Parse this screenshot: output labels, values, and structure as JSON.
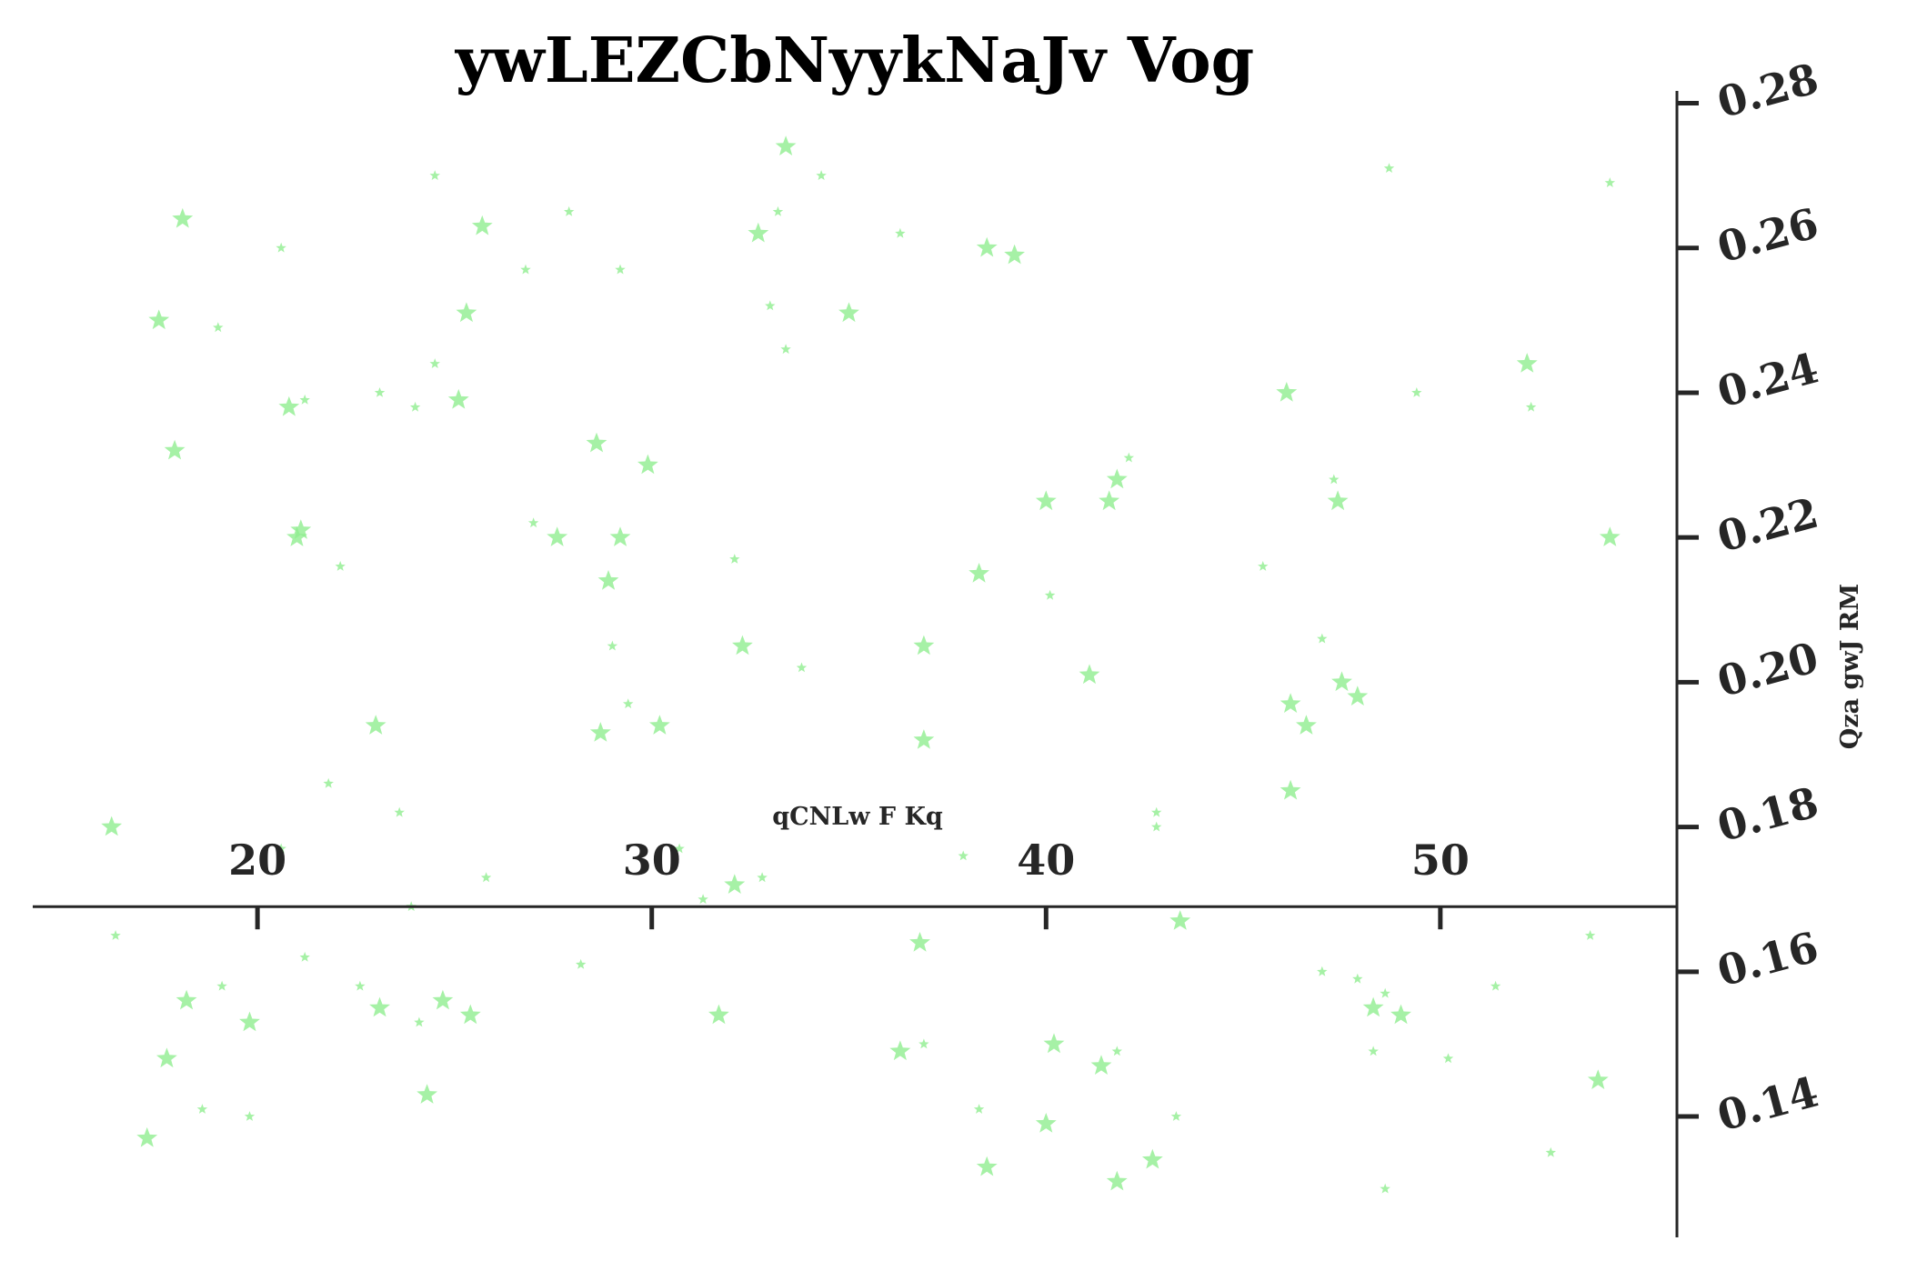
{
  "chart_data": {
    "type": "scatter",
    "title": "ywLEZCbNyykNaJv Vog",
    "xlabel": "qCNLw F  Kq",
    "ylabel": "Qza gwJ RM",
    "xlim": [
      14.3,
      56.0
    ],
    "ylim": [
      0.1233,
      0.2817
    ],
    "x_ticks": [
      20,
      30,
      40,
      50
    ],
    "y_ticks": [
      0.14,
      0.16,
      0.18,
      0.2,
      0.22,
      0.24,
      0.26,
      0.28
    ],
    "x_tick_labels": [
      "20",
      "30",
      "40",
      "50"
    ],
    "y_tick_labels": [
      "0.14",
      "0.16",
      "0.18",
      "0.20",
      "0.22",
      "0.24",
      "0.26",
      "0.28"
    ],
    "x_axis_crosses_y": 0.169,
    "y_axis_crosses_x": 56.0,
    "y_axis_side": "right",
    "marker": "star",
    "color": "#90ee90",
    "grid": false,
    "legend": "none",
    "points": [
      {
        "x": 18.1,
        "y": 0.264,
        "s": "l"
      },
      {
        "x": 17.5,
        "y": 0.25,
        "s": "l"
      },
      {
        "x": 17.9,
        "y": 0.232,
        "s": "l"
      },
      {
        "x": 19.0,
        "y": 0.249,
        "s": "s"
      },
      {
        "x": 20.6,
        "y": 0.26,
        "s": "s"
      },
      {
        "x": 20.8,
        "y": 0.238,
        "s": "l"
      },
      {
        "x": 21.2,
        "y": 0.239,
        "s": "s"
      },
      {
        "x": 21.1,
        "y": 0.221,
        "s": "l"
      },
      {
        "x": 21.0,
        "y": 0.22,
        "s": "l"
      },
      {
        "x": 22.1,
        "y": 0.216,
        "s": "s"
      },
      {
        "x": 16.3,
        "y": 0.18,
        "s": "l"
      },
      {
        "x": 21.8,
        "y": 0.186,
        "s": "s"
      },
      {
        "x": 23.0,
        "y": 0.194,
        "s": "l"
      },
      {
        "x": 23.6,
        "y": 0.182,
        "s": "s"
      },
      {
        "x": 23.1,
        "y": 0.24,
        "s": "s"
      },
      {
        "x": 24.5,
        "y": 0.27,
        "s": "s"
      },
      {
        "x": 25.7,
        "y": 0.263,
        "s": "l"
      },
      {
        "x": 25.3,
        "y": 0.251,
        "s": "l"
      },
      {
        "x": 24.5,
        "y": 0.244,
        "s": "s"
      },
      {
        "x": 24.0,
        "y": 0.238,
        "s": "s"
      },
      {
        "x": 25.1,
        "y": 0.239,
        "s": "l"
      },
      {
        "x": 26.8,
        "y": 0.257,
        "s": "s"
      },
      {
        "x": 27.9,
        "y": 0.265,
        "s": "s"
      },
      {
        "x": 27.0,
        "y": 0.222,
        "s": "s"
      },
      {
        "x": 27.6,
        "y": 0.22,
        "s": "l"
      },
      {
        "x": 28.6,
        "y": 0.233,
        "s": "l"
      },
      {
        "x": 29.2,
        "y": 0.257,
        "s": "s"
      },
      {
        "x": 28.9,
        "y": 0.214,
        "s": "l"
      },
      {
        "x": 29.2,
        "y": 0.22,
        "s": "l"
      },
      {
        "x": 29.9,
        "y": 0.23,
        "s": "l"
      },
      {
        "x": 29.0,
        "y": 0.205,
        "s": "s"
      },
      {
        "x": 29.4,
        "y": 0.197,
        "s": "s"
      },
      {
        "x": 28.7,
        "y": 0.193,
        "s": "l"
      },
      {
        "x": 30.2,
        "y": 0.194,
        "s": "l"
      },
      {
        "x": 33.4,
        "y": 0.274,
        "s": "l"
      },
      {
        "x": 34.3,
        "y": 0.27,
        "s": "s"
      },
      {
        "x": 33.2,
        "y": 0.265,
        "s": "s"
      },
      {
        "x": 32.7,
        "y": 0.262,
        "s": "l"
      },
      {
        "x": 33.0,
        "y": 0.252,
        "s": "s"
      },
      {
        "x": 35.0,
        "y": 0.251,
        "s": "l"
      },
      {
        "x": 33.4,
        "y": 0.246,
        "s": "s"
      },
      {
        "x": 32.1,
        "y": 0.217,
        "s": "s"
      },
      {
        "x": 32.3,
        "y": 0.205,
        "s": "l"
      },
      {
        "x": 33.8,
        "y": 0.202,
        "s": "s"
      },
      {
        "x": 36.3,
        "y": 0.262,
        "s": "s"
      },
      {
        "x": 38.5,
        "y": 0.26,
        "s": "l"
      },
      {
        "x": 39.2,
        "y": 0.259,
        "s": "l"
      },
      {
        "x": 40.0,
        "y": 0.225,
        "s": "l"
      },
      {
        "x": 38.3,
        "y": 0.215,
        "s": "l"
      },
      {
        "x": 40.1,
        "y": 0.212,
        "s": "s"
      },
      {
        "x": 36.9,
        "y": 0.205,
        "s": "l"
      },
      {
        "x": 41.1,
        "y": 0.201,
        "s": "l"
      },
      {
        "x": 36.9,
        "y": 0.192,
        "s": "l"
      },
      {
        "x": 42.1,
        "y": 0.231,
        "s": "s"
      },
      {
        "x": 41.8,
        "y": 0.228,
        "s": "l"
      },
      {
        "x": 41.6,
        "y": 0.225,
        "s": "l"
      },
      {
        "x": 48.7,
        "y": 0.271,
        "s": "s"
      },
      {
        "x": 54.3,
        "y": 0.269,
        "s": "s"
      },
      {
        "x": 52.2,
        "y": 0.244,
        "s": "l"
      },
      {
        "x": 46.1,
        "y": 0.24,
        "s": "l"
      },
      {
        "x": 49.4,
        "y": 0.24,
        "s": "s"
      },
      {
        "x": 52.3,
        "y": 0.238,
        "s": "s"
      },
      {
        "x": 47.3,
        "y": 0.228,
        "s": "s"
      },
      {
        "x": 47.4,
        "y": 0.225,
        "s": "l"
      },
      {
        "x": 45.5,
        "y": 0.216,
        "s": "s"
      },
      {
        "x": 54.3,
        "y": 0.22,
        "s": "l"
      },
      {
        "x": 47.0,
        "y": 0.206,
        "s": "s"
      },
      {
        "x": 47.5,
        "y": 0.2,
        "s": "l"
      },
      {
        "x": 47.9,
        "y": 0.198,
        "s": "l"
      },
      {
        "x": 46.2,
        "y": 0.197,
        "s": "l"
      },
      {
        "x": 46.6,
        "y": 0.194,
        "s": "l"
      },
      {
        "x": 46.2,
        "y": 0.185,
        "s": "l"
      },
      {
        "x": 42.8,
        "y": 0.182,
        "s": "s"
      },
      {
        "x": 42.8,
        "y": 0.18,
        "s": "s"
      },
      {
        "x": 16.4,
        "y": 0.165,
        "s": "s"
      },
      {
        "x": 20.6,
        "y": 0.177,
        "s": "s"
      },
      {
        "x": 21.2,
        "y": 0.162,
        "s": "s"
      },
      {
        "x": 18.2,
        "y": 0.156,
        "s": "l"
      },
      {
        "x": 19.1,
        "y": 0.158,
        "s": "s"
      },
      {
        "x": 19.8,
        "y": 0.153,
        "s": "l"
      },
      {
        "x": 17.7,
        "y": 0.148,
        "s": "l"
      },
      {
        "x": 18.6,
        "y": 0.141,
        "s": "s"
      },
      {
        "x": 19.8,
        "y": 0.14,
        "s": "s"
      },
      {
        "x": 17.2,
        "y": 0.137,
        "s": "l"
      },
      {
        "x": 22.6,
        "y": 0.158,
        "s": "s"
      },
      {
        "x": 23.1,
        "y": 0.155,
        "s": "l"
      },
      {
        "x": 24.1,
        "y": 0.153,
        "s": "s"
      },
      {
        "x": 24.7,
        "y": 0.156,
        "s": "l"
      },
      {
        "x": 25.4,
        "y": 0.154,
        "s": "l"
      },
      {
        "x": 24.3,
        "y": 0.143,
        "s": "l"
      },
      {
        "x": 23.9,
        "y": 0.169,
        "s": "s"
      },
      {
        "x": 25.8,
        "y": 0.173,
        "s": "s"
      },
      {
        "x": 28.2,
        "y": 0.161,
        "s": "s"
      },
      {
        "x": 30.7,
        "y": 0.177,
        "s": "s"
      },
      {
        "x": 31.3,
        "y": 0.17,
        "s": "s"
      },
      {
        "x": 32.1,
        "y": 0.172,
        "s": "l"
      },
      {
        "x": 32.8,
        "y": 0.173,
        "s": "s"
      },
      {
        "x": 31.7,
        "y": 0.154,
        "s": "l"
      },
      {
        "x": 37.9,
        "y": 0.176,
        "s": "s"
      },
      {
        "x": 36.8,
        "y": 0.164,
        "s": "l"
      },
      {
        "x": 36.9,
        "y": 0.15,
        "s": "s"
      },
      {
        "x": 36.3,
        "y": 0.149,
        "s": "l"
      },
      {
        "x": 40.2,
        "y": 0.15,
        "s": "l"
      },
      {
        "x": 41.4,
        "y": 0.147,
        "s": "l"
      },
      {
        "x": 41.8,
        "y": 0.149,
        "s": "s"
      },
      {
        "x": 38.3,
        "y": 0.141,
        "s": "s"
      },
      {
        "x": 40.0,
        "y": 0.139,
        "s": "l"
      },
      {
        "x": 38.5,
        "y": 0.133,
        "s": "l"
      },
      {
        "x": 41.8,
        "y": 0.131,
        "s": "l"
      },
      {
        "x": 42.7,
        "y": 0.134,
        "s": "l"
      },
      {
        "x": 43.3,
        "y": 0.14,
        "s": "s"
      },
      {
        "x": 43.4,
        "y": 0.167,
        "s": "l"
      },
      {
        "x": 47.0,
        "y": 0.16,
        "s": "s"
      },
      {
        "x": 47.9,
        "y": 0.159,
        "s": "s"
      },
      {
        "x": 48.6,
        "y": 0.157,
        "s": "s"
      },
      {
        "x": 48.3,
        "y": 0.155,
        "s": "l"
      },
      {
        "x": 49.0,
        "y": 0.154,
        "s": "l"
      },
      {
        "x": 48.3,
        "y": 0.149,
        "s": "s"
      },
      {
        "x": 50.2,
        "y": 0.148,
        "s": "s"
      },
      {
        "x": 51.4,
        "y": 0.158,
        "s": "s"
      },
      {
        "x": 53.8,
        "y": 0.165,
        "s": "s"
      },
      {
        "x": 54.0,
        "y": 0.145,
        "s": "l"
      },
      {
        "x": 52.8,
        "y": 0.135,
        "s": "s"
      },
      {
        "x": 48.6,
        "y": 0.13,
        "s": "s"
      }
    ]
  }
}
